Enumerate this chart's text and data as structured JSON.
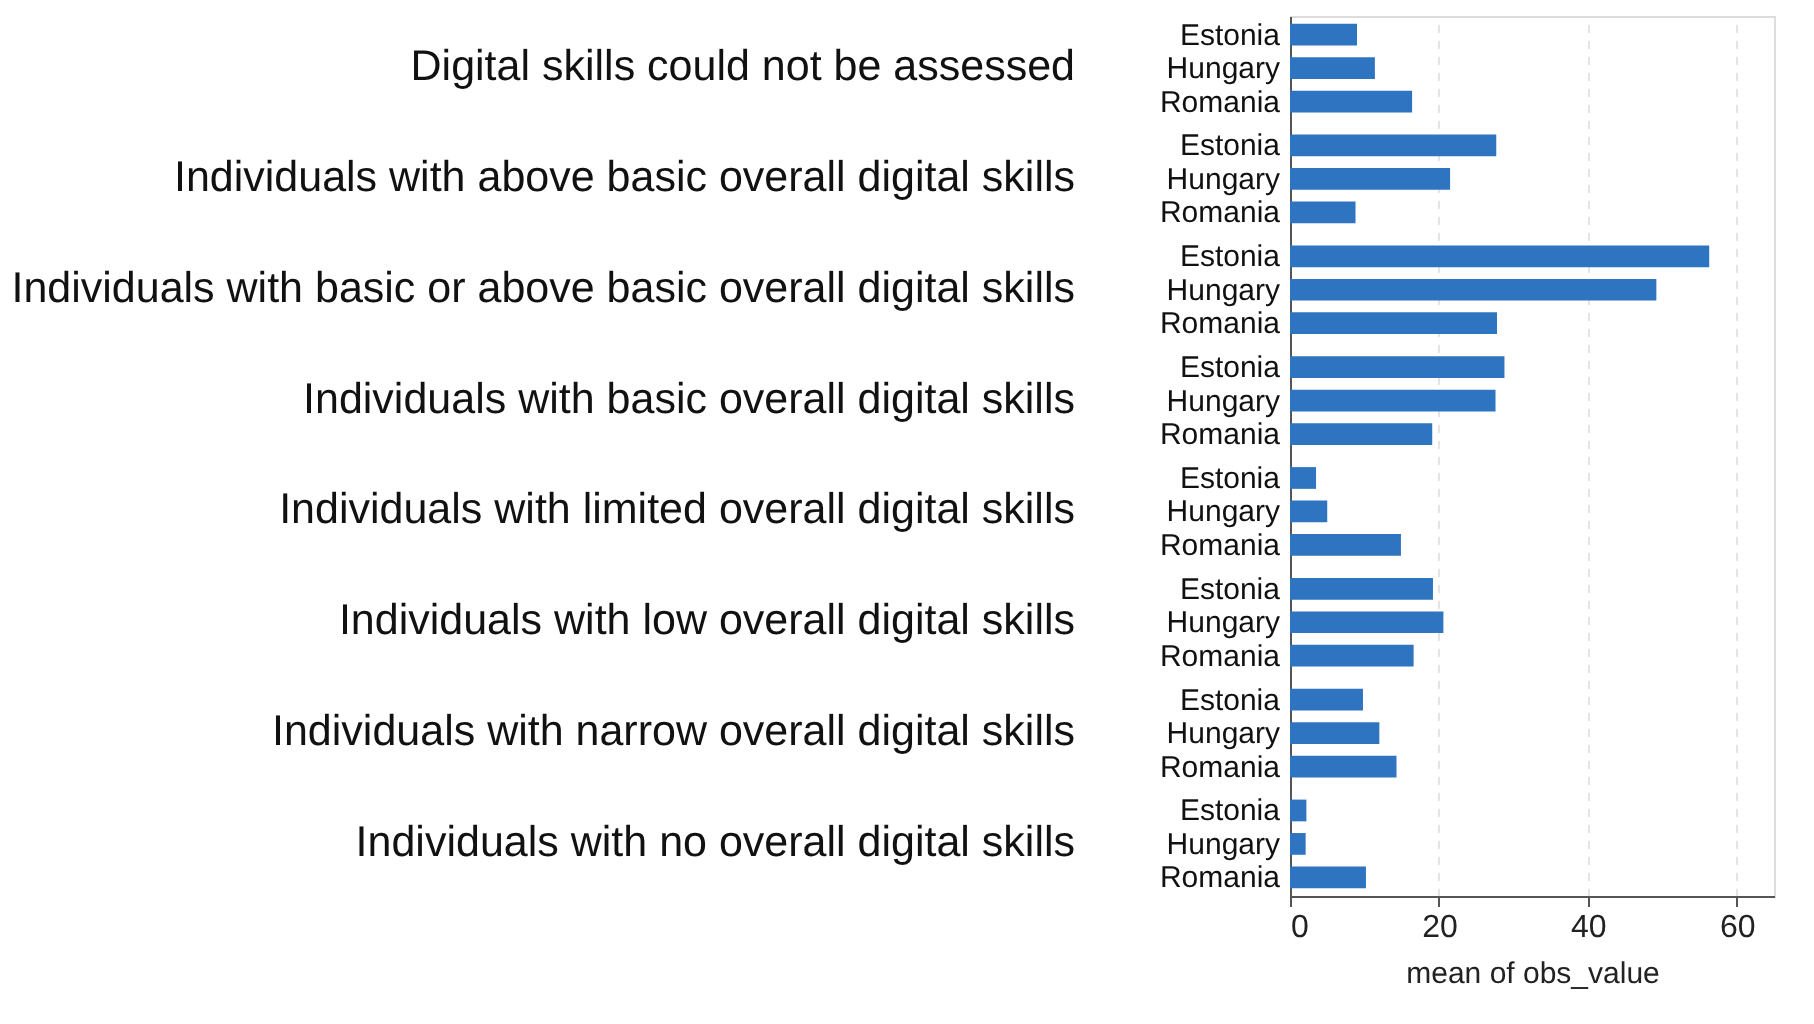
{
  "chart_data": {
    "type": "bar",
    "orientation": "horizontal",
    "xlabel": "mean of obs_value",
    "categories": [
      "Digital skills could not be assessed",
      "Individuals with above basic overall digital skills",
      "Individuals with basic or above basic overall digital skills",
      "Individuals with basic overall digital skills",
      "Individuals with limited overall digital skills",
      "Individuals with low overall digital skills",
      "Individuals with narrow overall digital skills",
      "Individuals with no overall digital skills"
    ],
    "series": [
      {
        "name": "Estonia",
        "color": "#2f74c0",
        "values": [
          9.0,
          27.7,
          56.3,
          28.8,
          3.5,
          19.2,
          9.8,
          2.2
        ]
      },
      {
        "name": "Hungary",
        "color": "#2f74c0",
        "values": [
          11.4,
          21.5,
          49.2,
          27.6,
          5.0,
          20.6,
          12.0,
          2.1
        ]
      },
      {
        "name": "Romania",
        "color": "#2f74c0",
        "values": [
          16.4,
          8.8,
          27.8,
          19.1,
          14.9,
          16.6,
          14.3,
          10.2
        ]
      }
    ],
    "xlim": [
      0,
      65
    ],
    "xticks": [
      0,
      20,
      40,
      60
    ],
    "grid": "x",
    "legend": false
  }
}
